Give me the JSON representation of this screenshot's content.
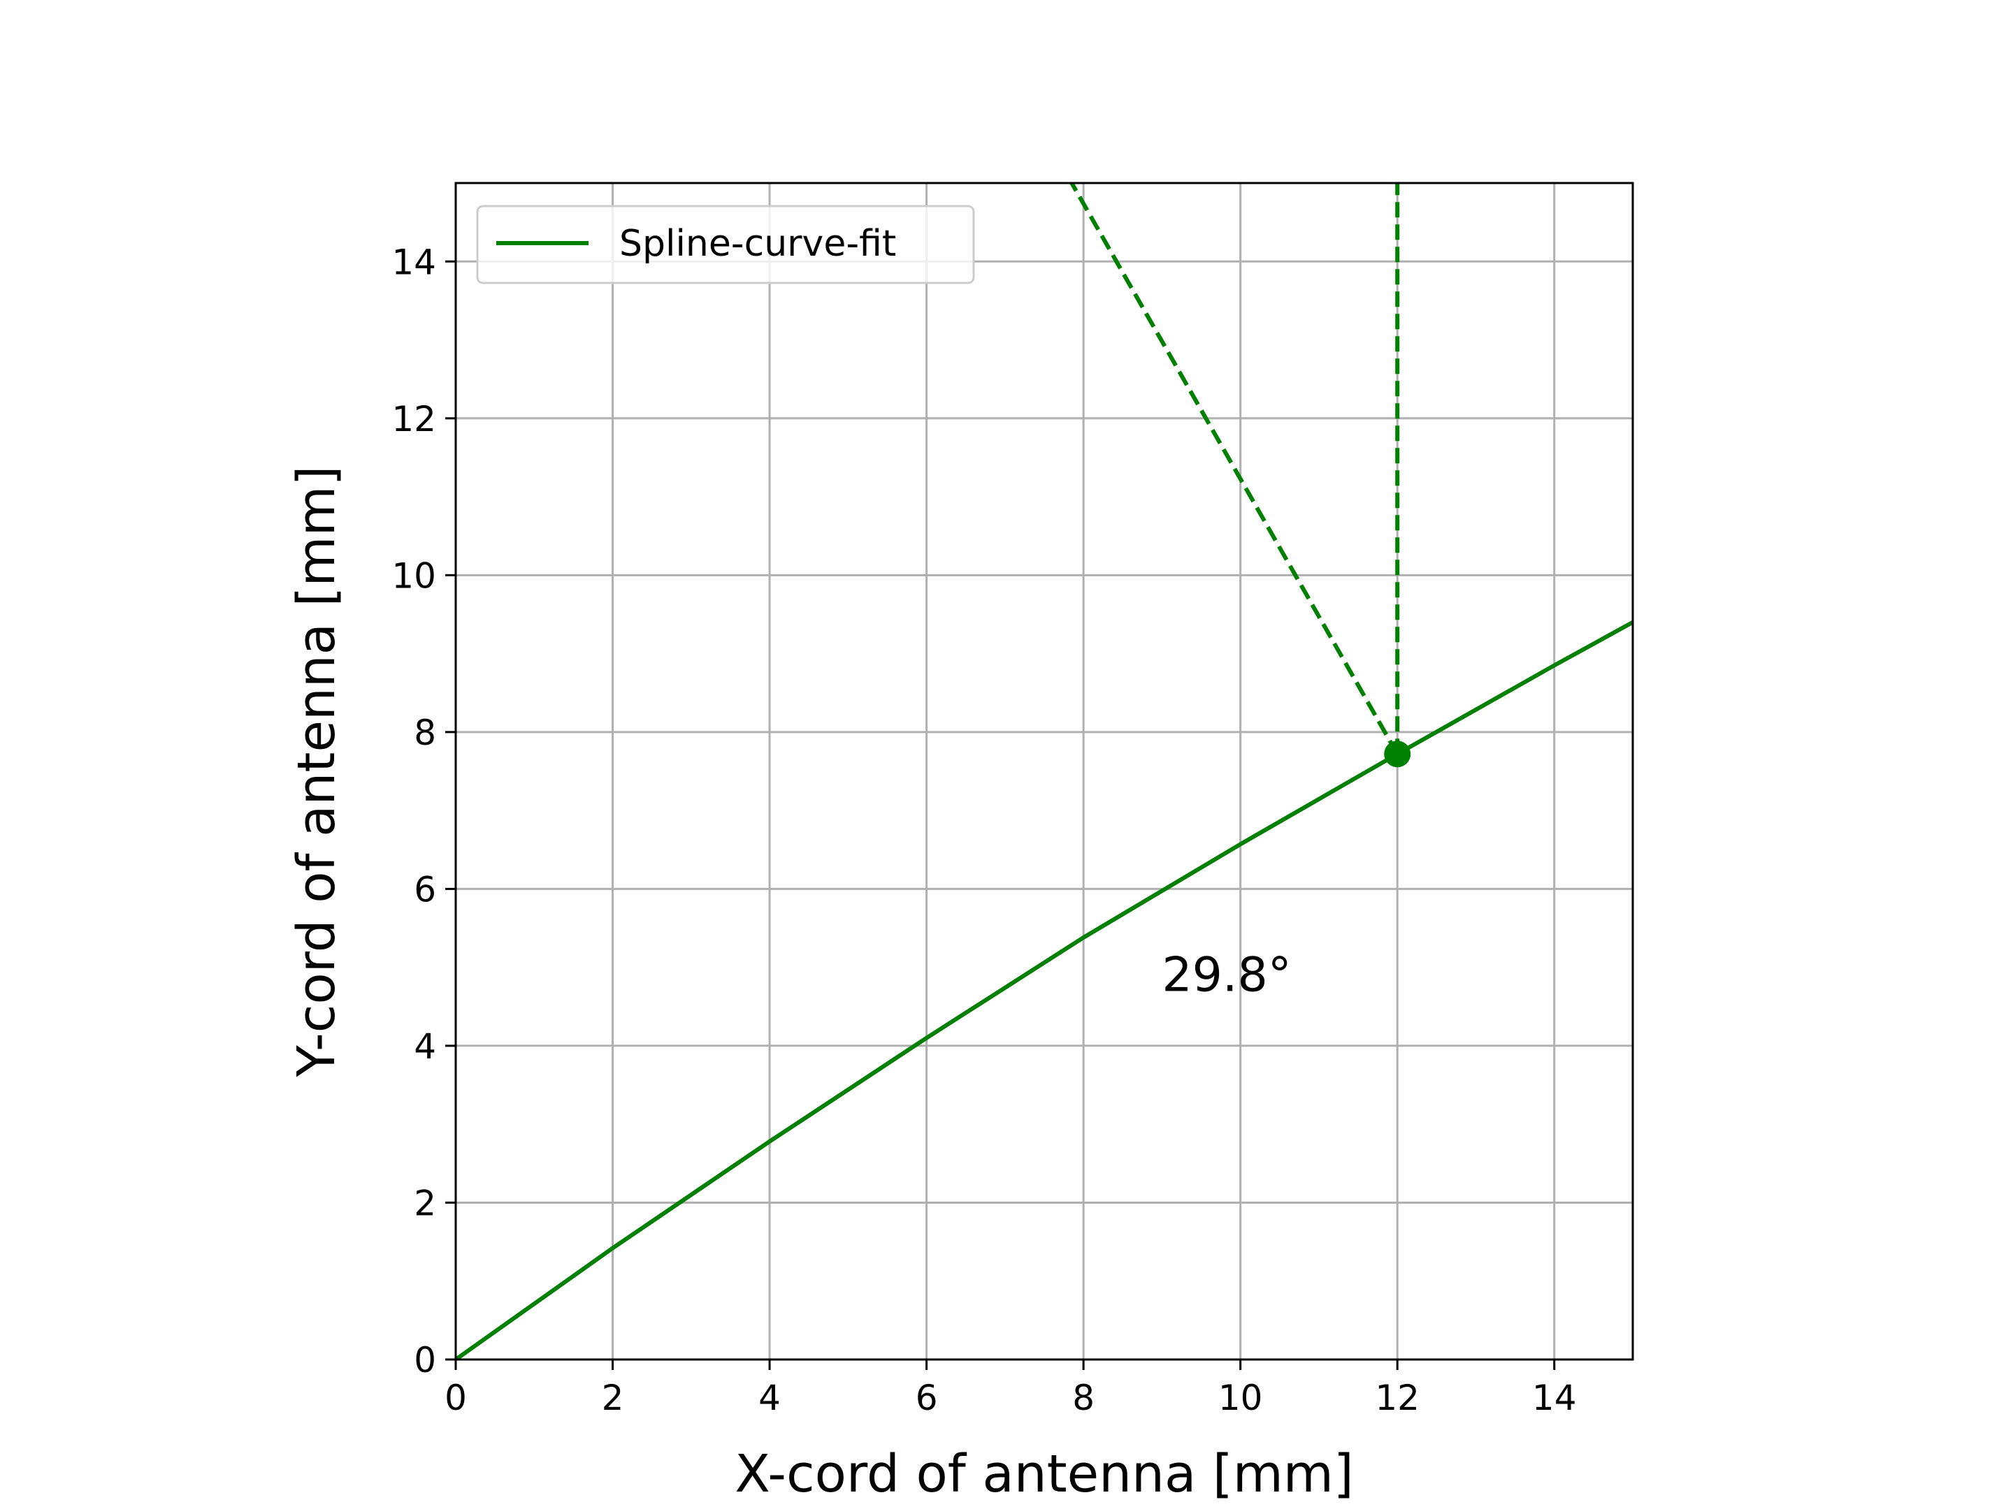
{
  "chart_data": {
    "type": "line",
    "title": "",
    "xlabel": "X-cord of antenna [mm]",
    "ylabel": "Y-cord of antenna [mm]",
    "xlim": [
      0,
      15
    ],
    "ylim": [
      0,
      15
    ],
    "xticks": [
      0,
      2,
      4,
      6,
      8,
      10,
      12,
      14
    ],
    "yticks": [
      0,
      2,
      4,
      6,
      8,
      10,
      12,
      14
    ],
    "xtick_labels": [
      "0",
      "2",
      "4",
      "6",
      "8",
      "10",
      "12",
      "14"
    ],
    "ytick_labels": [
      "0",
      "2",
      "4",
      "6",
      "8",
      "10",
      "12",
      "14"
    ],
    "grid": true,
    "legend": {
      "placement": "top-left",
      "entries": [
        "Spline-curve-fit"
      ]
    },
    "series": [
      {
        "name": "Spline-curve-fit",
        "color": "#008000",
        "style": "solid",
        "x": [
          0,
          2,
          4,
          6,
          8,
          10,
          12,
          14,
          15
        ],
        "y": [
          0,
          1.42,
          2.78,
          4.1,
          5.38,
          6.57,
          7.72,
          8.85,
          9.4
        ]
      }
    ],
    "reference_lines": [
      {
        "name": "vertical-reference",
        "color": "#008000",
        "style": "dashed",
        "x": [
          12,
          12
        ],
        "y": [
          7.72,
          15
        ]
      },
      {
        "name": "tangent-normal",
        "color": "#008000",
        "style": "dashed",
        "x": [
          12,
          7.85
        ],
        "y": [
          7.72,
          15
        ]
      }
    ],
    "marker": {
      "x": 12,
      "y": 7.72,
      "color": "#008000"
    },
    "annotations": [
      {
        "text": "29.8°",
        "x": 9.0,
        "y": 4.7
      }
    ]
  }
}
